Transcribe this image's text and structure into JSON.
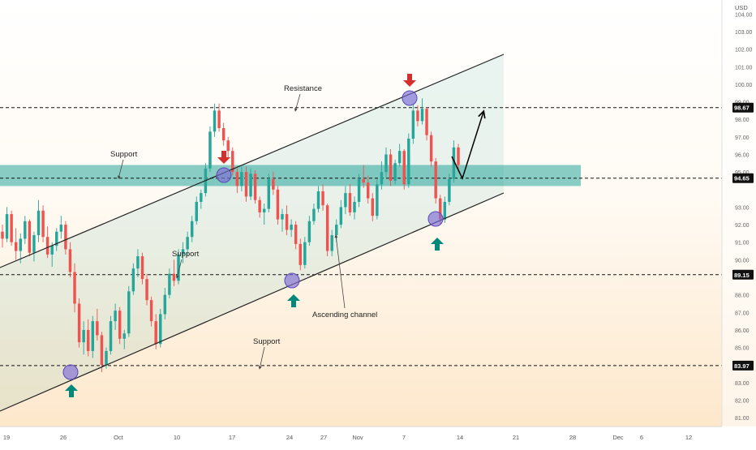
{
  "chart_data": {
    "type": "candlestick",
    "currency": "USD",
    "y_ticks": [
      "104.00",
      "103.00",
      "102.00",
      "101.00",
      "100.00",
      "99.00",
      "98.00",
      "97.00",
      "96.00",
      "95.00",
      "93.00",
      "92.00",
      "91.00",
      "90.00",
      "88.00",
      "87.00",
      "86.00",
      "85.00",
      "84.00",
      "83.00",
      "82.00",
      "81.00"
    ],
    "y_tick_values": [
      104,
      103,
      102,
      101,
      100,
      99,
      98,
      97,
      96,
      95,
      93,
      92,
      91,
      90,
      88,
      87,
      86,
      85,
      84,
      83,
      82,
      81
    ],
    "ylim": [
      80.5,
      104.8
    ],
    "x_ticks": [
      "19",
      "26",
      "Oct",
      "10",
      "17",
      "24",
      "27",
      "Nov",
      "7",
      "14",
      "21",
      "28",
      "Dec",
      "6",
      "12"
    ],
    "price_labels": [
      {
        "text": "98.67",
        "value": 98.67
      },
      {
        "text": "94.65",
        "value": 94.65
      },
      {
        "text": "89.15",
        "value": 89.15
      },
      {
        "text": "83.97",
        "value": 83.97
      }
    ],
    "support_zone": {
      "from": 94.2,
      "to": 95.4
    },
    "annotations": {
      "resistance": "Resistance",
      "support_top": "Support",
      "support_mid": "Support",
      "support_low": "Support",
      "channel": "Ascending channel"
    },
    "colors": {
      "up": "#26a69a",
      "down": "#ef5350",
      "zone": "#26a69a",
      "arrow_down": "#d32f2f",
      "arrow_up": "#00897b",
      "circle": "#7e6bd6"
    },
    "candles_approx": [
      [
        91.6,
        92.0,
        90.7,
        91.2
      ],
      [
        91.2,
        93.0,
        91.0,
        92.6
      ],
      [
        92.6,
        92.8,
        90.8,
        91.0
      ],
      [
        91.0,
        91.8,
        90.0,
        90.5
      ],
      [
        90.5,
        91.5,
        89.8,
        91.2
      ],
      [
        91.2,
        92.5,
        90.9,
        92.2
      ],
      [
        92.2,
        92.3,
        90.2,
        90.4
      ],
      [
        90.4,
        91.6,
        89.9,
        91.4
      ],
      [
        91.4,
        93.4,
        91.0,
        92.8
      ],
      [
        92.8,
        93.1,
        91.0,
        91.3
      ],
      [
        91.3,
        91.9,
        90.1,
        90.3
      ],
      [
        90.3,
        91.0,
        89.6,
        90.8
      ],
      [
        90.8,
        91.8,
        90.5,
        91.6
      ],
      [
        91.6,
        92.5,
        91.2,
        92.0
      ],
      [
        92.0,
        92.2,
        90.3,
        90.6
      ],
      [
        90.6,
        91.0,
        89.0,
        89.3
      ],
      [
        89.3,
        89.8,
        87.0,
        87.5
      ],
      [
        87.5,
        87.8,
        85.0,
        85.3
      ],
      [
        85.3,
        86.5,
        84.6,
        86.0
      ],
      [
        86.0,
        86.6,
        84.5,
        84.8
      ],
      [
        84.8,
        86.8,
        84.4,
        86.5
      ],
      [
        86.5,
        87.2,
        85.4,
        85.7
      ],
      [
        85.7,
        85.9,
        83.6,
        84.0
      ],
      [
        84.0,
        85.0,
        83.8,
        84.8
      ],
      [
        84.8,
        86.8,
        84.6,
        86.5
      ],
      [
        86.5,
        87.5,
        86.0,
        87.1
      ],
      [
        87.1,
        87.3,
        85.2,
        85.5
      ],
      [
        85.5,
        86.0,
        84.9,
        85.8
      ],
      [
        85.8,
        88.5,
        85.6,
        88.2
      ],
      [
        88.2,
        89.8,
        88.0,
        89.5
      ],
      [
        89.5,
        90.6,
        89.0,
        90.2
      ],
      [
        90.2,
        90.4,
        88.6,
        88.9
      ],
      [
        88.9,
        89.2,
        87.4,
        87.7
      ],
      [
        87.7,
        87.9,
        86.2,
        86.5
      ],
      [
        86.5,
        86.9,
        84.9,
        85.2
      ],
      [
        85.2,
        87.2,
        85.0,
        86.9
      ],
      [
        86.9,
        88.4,
        86.6,
        88.0
      ],
      [
        88.0,
        89.5,
        87.8,
        89.2
      ],
      [
        89.2,
        90.0,
        88.5,
        88.8
      ],
      [
        88.8,
        90.6,
        88.6,
        90.3
      ],
      [
        90.3,
        91.0,
        89.8,
        90.6
      ],
      [
        90.6,
        91.6,
        90.2,
        91.3
      ],
      [
        91.3,
        92.5,
        91.0,
        92.2
      ],
      [
        92.2,
        93.6,
        92.0,
        93.3
      ],
      [
        93.3,
        94.0,
        92.9,
        93.8
      ],
      [
        93.8,
        95.5,
        93.6,
        95.2
      ],
      [
        95.2,
        97.6,
        95.0,
        97.3
      ],
      [
        97.3,
        98.9,
        97.0,
        98.5
      ],
      [
        98.5,
        98.9,
        97.3,
        97.5
      ],
      [
        97.5,
        97.8,
        96.5,
        96.8
      ],
      [
        96.8,
        97.0,
        95.8,
        96.2
      ],
      [
        96.2,
        96.4,
        94.8,
        95.0
      ],
      [
        95.0,
        95.2,
        93.8,
        94.2
      ],
      [
        94.2,
        95.3,
        93.9,
        95.0
      ],
      [
        95.0,
        95.3,
        93.3,
        93.6
      ],
      [
        93.6,
        95.2,
        93.4,
        94.9
      ],
      [
        94.9,
        95.1,
        93.2,
        93.4
      ],
      [
        93.4,
        93.6,
        92.4,
        92.7
      ],
      [
        92.7,
        93.2,
        92.0,
        92.9
      ],
      [
        92.9,
        94.9,
        92.7,
        94.6
      ],
      [
        94.6,
        95.0,
        93.7,
        94.0
      ],
      [
        94.0,
        94.2,
        92.0,
        92.3
      ],
      [
        92.3,
        92.9,
        91.6,
        92.6
      ],
      [
        92.6,
        93.1,
        91.4,
        91.7
      ],
      [
        91.7,
        92.3,
        91.3,
        92.0
      ],
      [
        92.0,
        92.2,
        90.6,
        90.9
      ],
      [
        90.9,
        91.2,
        89.4,
        89.7
      ],
      [
        89.7,
        91.3,
        89.5,
        91.0
      ],
      [
        91.0,
        92.5,
        90.8,
        92.2
      ],
      [
        92.2,
        93.2,
        92.0,
        92.9
      ],
      [
        92.9,
        94.2,
        92.7,
        93.9
      ],
      [
        93.9,
        94.3,
        92.8,
        93.1
      ],
      [
        93.1,
        93.2,
        90.2,
        90.5
      ],
      [
        90.5,
        91.7,
        90.2,
        91.4
      ],
      [
        91.4,
        92.3,
        91.0,
        92.0
      ],
      [
        92.0,
        93.4,
        91.8,
        93.0
      ],
      [
        93.0,
        94.2,
        92.6,
        93.8
      ],
      [
        93.8,
        94.3,
        92.5,
        92.7
      ],
      [
        92.7,
        93.6,
        92.3,
        93.3
      ],
      [
        93.3,
        94.9,
        93.0,
        94.6
      ],
      [
        94.6,
        95.4,
        94.1,
        94.4
      ],
      [
        94.4,
        94.8,
        93.2,
        93.5
      ],
      [
        93.5,
        93.8,
        92.2,
        92.5
      ],
      [
        92.5,
        94.6,
        92.3,
        94.3
      ],
      [
        94.3,
        95.6,
        94.0,
        95.0
      ],
      [
        95.0,
        96.4,
        94.7,
        96.0
      ],
      [
        96.0,
        96.3,
        94.2,
        94.5
      ],
      [
        94.5,
        95.7,
        94.3,
        95.5
      ],
      [
        95.5,
        96.6,
        95.3,
        96.2
      ],
      [
        96.2,
        96.3,
        94.0,
        94.3
      ],
      [
        94.3,
        97.2,
        94.1,
        96.9
      ],
      [
        96.9,
        98.9,
        96.6,
        98.5
      ],
      [
        98.5,
        98.8,
        97.6,
        97.9
      ],
      [
        97.9,
        99.2,
        97.7,
        98.6
      ],
      [
        98.6,
        98.7,
        96.8,
        97.1
      ],
      [
        97.1,
        97.3,
        95.3,
        95.6
      ],
      [
        95.6,
        95.8,
        93.2,
        93.5
      ],
      [
        93.5,
        93.7,
        92.0,
        92.3
      ],
      [
        92.3,
        93.6,
        92.1,
        93.3
      ],
      [
        93.3,
        94.9,
        93.1,
        94.6
      ],
      [
        94.6,
        96.8,
        94.4,
        96.4
      ],
      [
        96.4,
        96.6,
        95.0,
        95.4
      ]
    ]
  }
}
